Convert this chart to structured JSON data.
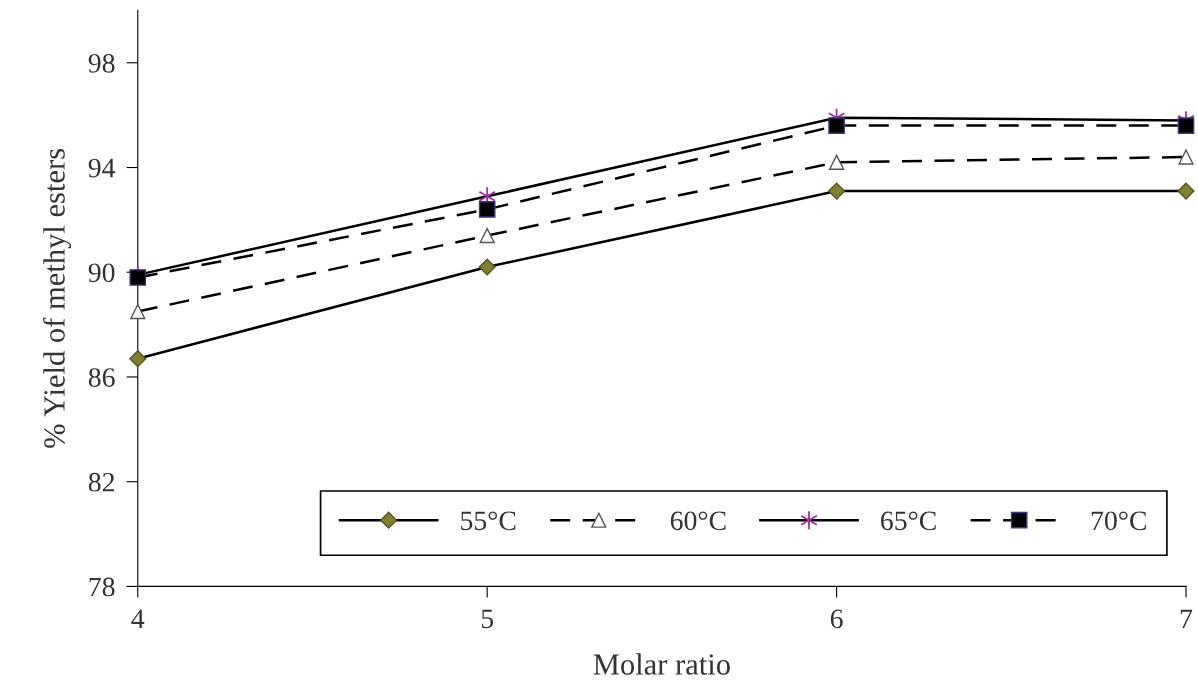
{
  "chart_data": {
    "type": "line",
    "xlabel": "Molar ratio",
    "ylabel": "% Yield of methyl esters",
    "x": [
      4,
      5,
      6,
      7
    ],
    "xlim": [
      4,
      7
    ],
    "xticks": [
      4,
      5,
      6,
      7
    ],
    "ylim": [
      78,
      100
    ],
    "yticks": [
      78,
      82,
      86,
      90,
      94,
      98
    ],
    "grid": false,
    "legend": "bottom right",
    "series": [
      {
        "name": "55°C",
        "color": "#808033",
        "marker": "diamond",
        "line_style": "solid",
        "values": [
          86.7,
          90.2,
          93.1,
          93.1
        ]
      },
      {
        "name": "60°C",
        "color": "#ffffff",
        "marker": "triangle",
        "line_style": "dashed",
        "values": [
          88.5,
          91.4,
          94.2,
          94.4
        ]
      },
      {
        "name": "65°C",
        "color": "#993399",
        "marker": "cross",
        "line_style": "solid",
        "values": [
          89.9,
          92.9,
          95.9,
          95.8
        ]
      },
      {
        "name": "70°C",
        "color": "#000000",
        "marker": "square",
        "line_style": "dashed",
        "values": [
          89.8,
          92.4,
          95.6,
          95.6
        ]
      }
    ]
  }
}
